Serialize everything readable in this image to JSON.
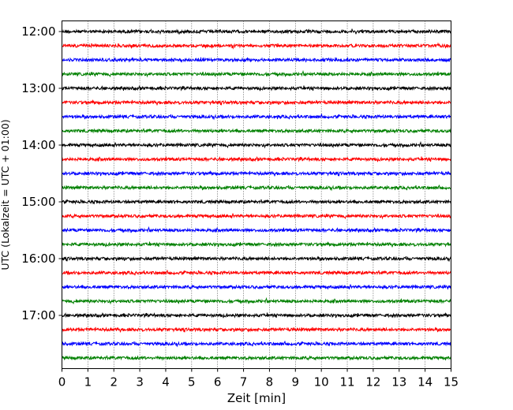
{
  "chart_data": {
    "type": "line",
    "title": "",
    "xlabel": "Zeit  [min]",
    "ylabel": "UTC (Lokalzeit = UTC + 01:00)",
    "xlim": [
      0,
      15
    ],
    "xticks": [
      0,
      1,
      2,
      3,
      4,
      5,
      6,
      7,
      8,
      9,
      10,
      11,
      12,
      13,
      14,
      15
    ],
    "yticks": [
      "12:00",
      "13:00",
      "14:00",
      "15:00",
      "16:00",
      "17:00"
    ],
    "grid": "vertical-dotted",
    "legend": "none",
    "trace_colors": [
      "#000000",
      "#ff0000",
      "#0000ff",
      "#008000"
    ],
    "traces": [
      {
        "time": "12:00",
        "color": "#000000"
      },
      {
        "time": "12:15",
        "color": "#ff0000"
      },
      {
        "time": "12:30",
        "color": "#0000ff"
      },
      {
        "time": "12:45",
        "color": "#008000"
      },
      {
        "time": "13:00",
        "color": "#000000"
      },
      {
        "time": "13:15",
        "color": "#ff0000"
      },
      {
        "time": "13:30",
        "color": "#0000ff"
      },
      {
        "time": "13:45",
        "color": "#008000"
      },
      {
        "time": "14:00",
        "color": "#000000"
      },
      {
        "time": "14:15",
        "color": "#ff0000"
      },
      {
        "time": "14:30",
        "color": "#0000ff"
      },
      {
        "time": "14:45",
        "color": "#008000"
      },
      {
        "time": "15:00",
        "color": "#000000"
      },
      {
        "time": "15:15",
        "color": "#ff0000"
      },
      {
        "time": "15:30",
        "color": "#0000ff"
      },
      {
        "time": "15:45",
        "color": "#008000"
      },
      {
        "time": "16:00",
        "color": "#000000"
      },
      {
        "time": "16:15",
        "color": "#ff0000"
      },
      {
        "time": "16:30",
        "color": "#0000ff"
      },
      {
        "time": "16:45",
        "color": "#008000"
      },
      {
        "time": "17:00",
        "color": "#000000"
      },
      {
        "time": "17:15",
        "color": "#ff0000"
      },
      {
        "time": "17:30",
        "color": "#0000ff"
      },
      {
        "time": "17:45",
        "color": "#008000"
      }
    ]
  }
}
